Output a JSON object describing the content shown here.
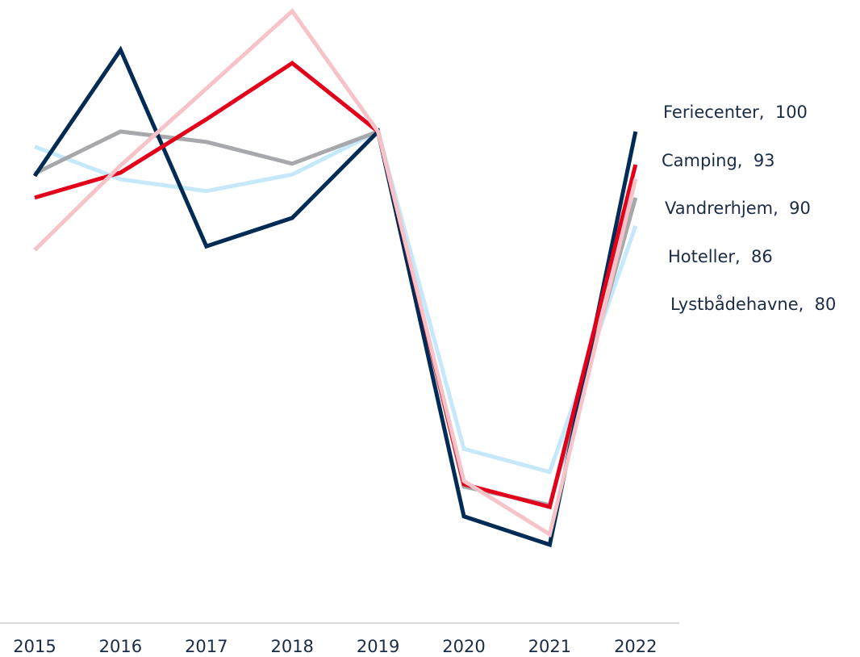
{
  "chart_data": {
    "type": "line",
    "categories": [
      "2015",
      "2016",
      "2017",
      "2018",
      "2019",
      "2020",
      "2021",
      "2022"
    ],
    "series": [
      {
        "name": "Feriecenter",
        "color": "#002b54",
        "values": [
          90.6,
          117.3,
          75.7,
          81.7,
          100,
          18.5,
          12.5,
          100
        ],
        "end_label": "Feriecenter,  100"
      },
      {
        "name": "Camping",
        "color": "#e2001a",
        "values": [
          86,
          91.3,
          102.6,
          114.5,
          100,
          25.3,
          20.5,
          93
        ],
        "end_label": "Camping,  93"
      },
      {
        "name": "Vandrerhjem",
        "color": "#f6c3c9",
        "values": [
          74.9,
          92.8,
          109.1,
          125.5,
          100,
          26,
          14.7,
          90
        ],
        "end_label": "Vandrerhjem,  90"
      },
      {
        "name": "Hoteller",
        "color": "#a6a8ab",
        "values": [
          91.1,
          100,
          97.8,
          93.2,
          100,
          24.8,
          20.9,
          86
        ],
        "end_label": "Hoteller,  86"
      },
      {
        "name": "Lystbådehavne",
        "color": "#c5e8fb",
        "values": [
          96.8,
          89.9,
          87.4,
          90.9,
          100,
          32.8,
          27.9,
          80
        ],
        "end_label": "Lystbådehavne,  80"
      }
    ],
    "ylim": [
      0,
      125
    ]
  }
}
